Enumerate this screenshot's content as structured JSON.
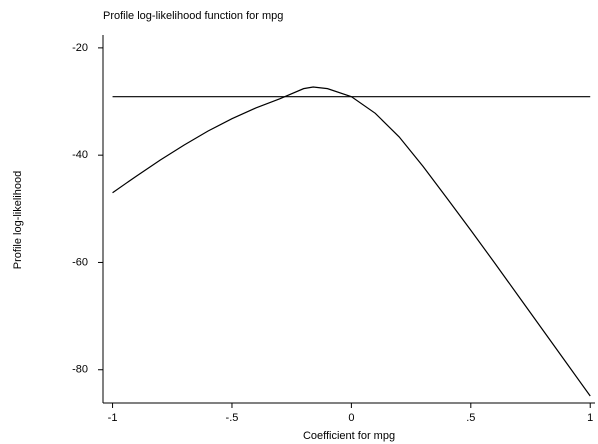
{
  "chart_data": {
    "type": "line",
    "title": "Profile log-likelihood function for mpg",
    "x_label": "Coefficient for mpg",
    "y_label": "Profile log-likelihood",
    "series": [
      {
        "color": "#000000",
        "x": [
          -1,
          -0.9,
          -0.8,
          -0.7,
          -0.6,
          -0.5,
          -0.4,
          -0.3,
          -0.2,
          -0.16,
          -0.1,
          0,
          0.1,
          0.2,
          0.3,
          0.4,
          0.5,
          0.6,
          0.7,
          0.8,
          0.9,
          1
        ],
        "values": [
          -47.0,
          -43.9,
          -40.9,
          -38.1,
          -35.5,
          -33.2,
          -31.2,
          -29.5,
          -27.6,
          -27.3,
          -27.6,
          -29.1,
          -32.2,
          -36.6,
          -42.1,
          -48.0,
          -54.0,
          -60.1,
          -66.3,
          -72.5,
          -78.7,
          -84.9
        ]
      },
      {
        "color": "#000000",
        "x": [
          -1,
          1
        ],
        "values": [
          -29.1,
          -29.1
        ]
      }
    ],
    "xlim": [
      -1.04,
      1.02
    ],
    "ylim": [
      -86.2,
      -17.6
    ],
    "xticks": [
      -1,
      {
        "value": -0.5,
        "label": "-.5"
      },
      0,
      {
        "value": 0.5,
        "label": ".5"
      },
      1
    ],
    "yticks": [
      -80,
      -60,
      -40,
      -20
    ],
    "grid": false
  }
}
